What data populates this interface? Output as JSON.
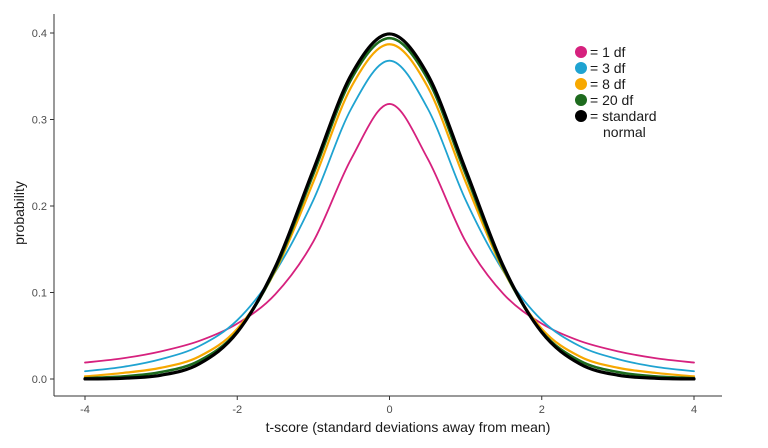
{
  "chart_data": {
    "type": "line",
    "title": "",
    "xlabel": "t-score (standard deviations away from mean)",
    "ylabel": "probability",
    "xlim": [
      -4,
      4
    ],
    "ylim": [
      0,
      0.4
    ],
    "xticks": [
      -4,
      -2,
      0,
      2,
      4
    ],
    "yticks": [
      0.0,
      0.1,
      0.2,
      0.3,
      0.4
    ],
    "xtick_labels": [
      "-4",
      "-2",
      "0",
      "2",
      "4"
    ],
    "ytick_labels": [
      "0.0",
      "0.1",
      "0.2",
      "0.3",
      "0.4"
    ],
    "grid": false,
    "legend_position": "top-right",
    "x": [
      -4.0,
      -3.5,
      -3.0,
      -2.5,
      -2.0,
      -1.5,
      -1.0,
      -0.5,
      0.0,
      0.5,
      1.0,
      1.5,
      2.0,
      2.5,
      3.0,
      3.5,
      4.0
    ],
    "series": [
      {
        "name": "= 1 df",
        "color": "#d6217e",
        "values": [
          0.019,
          0.024,
          0.032,
          0.044,
          0.064,
          0.098,
          0.159,
          0.255,
          0.318,
          0.255,
          0.159,
          0.098,
          0.064,
          0.044,
          0.032,
          0.024,
          0.019
        ]
      },
      {
        "name": "= 3 df",
        "color": "#1fa3d1",
        "values": [
          0.009,
          0.014,
          0.023,
          0.038,
          0.068,
          0.124,
          0.207,
          0.313,
          0.368,
          0.313,
          0.207,
          0.124,
          0.068,
          0.038,
          0.023,
          0.014,
          0.009
        ]
      },
      {
        "name": "= 8 df",
        "color": "#f7a800",
        "values": [
          0.003,
          0.007,
          0.013,
          0.026,
          0.058,
          0.125,
          0.228,
          0.338,
          0.387,
          0.338,
          0.228,
          0.125,
          0.058,
          0.026,
          0.013,
          0.007,
          0.003
        ]
      },
      {
        "name": "= 20 df",
        "color": "#1e6b1e",
        "values": [
          0.001,
          0.003,
          0.008,
          0.021,
          0.055,
          0.127,
          0.237,
          0.347,
          0.394,
          0.347,
          0.237,
          0.127,
          0.055,
          0.021,
          0.008,
          0.003,
          0.001
        ]
      },
      {
        "name": "= standard normal",
        "color": "#000000",
        "values": [
          0.0001,
          0.0009,
          0.0044,
          0.0175,
          0.054,
          0.1295,
          0.242,
          0.3521,
          0.3989,
          0.3521,
          0.242,
          0.1295,
          0.054,
          0.0175,
          0.0044,
          0.0009,
          0.0001
        ]
      }
    ],
    "legend_display": [
      {
        "lines": [
          "= 1 df"
        ]
      },
      {
        "lines": [
          "= 3 df"
        ]
      },
      {
        "lines": [
          "= 8 df"
        ]
      },
      {
        "lines": [
          "= 20 df"
        ]
      },
      {
        "lines": [
          "= standard",
          "normal"
        ]
      }
    ]
  }
}
